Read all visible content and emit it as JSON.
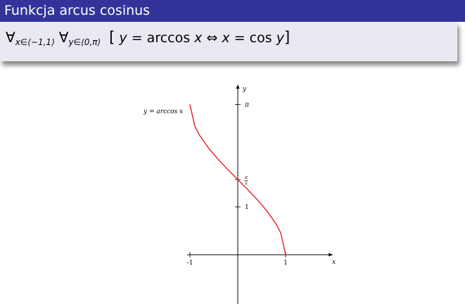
{
  "slide": {
    "title": "Funkcja arcus cosinus",
    "formula": {
      "quantifier": "∀",
      "sub1": "x∈⟨−1,1⟩",
      "sub2": "y∈⟨0,π⟩",
      "open_bracket": "[",
      "lhs_var": "y",
      "equals": " = arccos ",
      "arg": "x",
      "iff": " ⇔ ",
      "rhs_var": "x",
      "rhs": " = cos ",
      "rhs_arg": "y",
      "close_bracket": "]"
    }
  },
  "colors": {
    "title_bg": "#33339a",
    "block_bg": "#e9e9f2",
    "curve": "#e41f1f"
  },
  "chart_data": {
    "type": "line",
    "curve_label": "y = arccos x",
    "xlabel": "x",
    "ylabel": "y",
    "x_ticks": [
      {
        "value": -1,
        "label": "-1"
      },
      {
        "value": 1,
        "label": "1"
      }
    ],
    "y_ticks": [
      {
        "value": 1,
        "label": "1"
      },
      {
        "value": 1.5708,
        "label_num": "π",
        "label_den": "2"
      },
      {
        "value": 3.1416,
        "label": "π"
      }
    ],
    "xlim": [
      -2.0,
      2.0
    ],
    "ylim": [
      -0.9,
      3.6
    ],
    "series": [
      {
        "values_x": [
          -1.0,
          -0.9,
          -0.8,
          -0.6,
          -0.4,
          -0.2,
          0.0,
          0.2,
          0.4,
          0.6,
          0.8,
          0.9,
          1.0
        ],
        "values_y": [
          3.1416,
          2.6906,
          2.4981,
          2.2143,
          1.9823,
          1.7722,
          1.5708,
          1.3694,
          1.1593,
          0.9273,
          0.6435,
          0.451,
          0.0
        ]
      }
    ]
  }
}
